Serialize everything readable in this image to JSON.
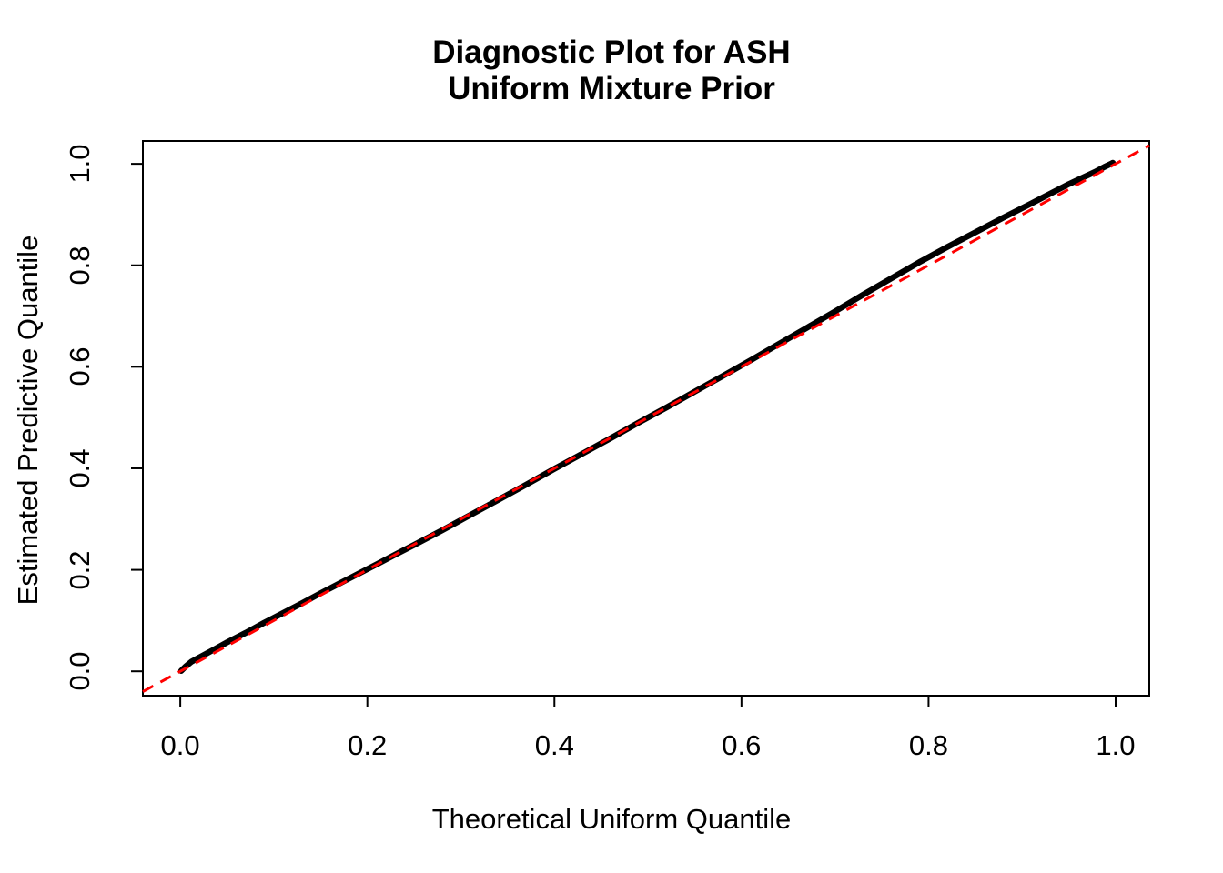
{
  "figure": {
    "title_line1": "Diagnostic Plot for ASH",
    "title_line2": "Uniform Mixture Prior",
    "x_axis_label": "Theoretical Uniform Quantile",
    "y_axis_label": "Estimated Predictive Quantile"
  },
  "colors": {
    "background": "#FFFFFF",
    "axis": "#000000",
    "quantile_curve": "#000000",
    "reference_line": "#FF0000"
  },
  "chart_data": {
    "type": "line",
    "title": "Diagnostic Plot for ASH\nUniform Mixture Prior",
    "xlabel": "Theoretical Uniform Quantile",
    "ylabel": "Estimated Predictive Quantile",
    "xlim": [
      -0.04,
      1.036
    ],
    "ylim": [
      -0.048,
      1.045
    ],
    "x_ticks": [
      0,
      0.2,
      0.4,
      0.6,
      0.8,
      1.0
    ],
    "x_tick_labels": [
      "0.0",
      "0.2",
      "0.4",
      "0.6",
      "0.8",
      "1.0"
    ],
    "y_ticks": [
      0,
      0.2,
      0.4,
      0.6,
      0.8,
      1.0
    ],
    "y_tick_labels": [
      "0.0",
      "0.2",
      "0.4",
      "0.6",
      "0.8",
      "1.0"
    ],
    "grid": false,
    "legend": null,
    "series": [
      {
        "name": "estimated-predictive-quantiles",
        "kind": "curve",
        "color": "#000000",
        "line_style": "solid",
        "line_width": 6.5,
        "points": [
          [
            0.001,
            0.001
          ],
          [
            0.006,
            0.01
          ],
          [
            0.012,
            0.019
          ],
          [
            0.02,
            0.027
          ],
          [
            0.035,
            0.042
          ],
          [
            0.05,
            0.057
          ],
          [
            0.07,
            0.076
          ],
          [
            0.09,
            0.096
          ],
          [
            0.11,
            0.115
          ],
          [
            0.13,
            0.134
          ],
          [
            0.15,
            0.154
          ],
          [
            0.17,
            0.173
          ],
          [
            0.19,
            0.192
          ],
          [
            0.21,
            0.211
          ],
          [
            0.23,
            0.23
          ],
          [
            0.25,
            0.249
          ],
          [
            0.28,
            0.278
          ],
          [
            0.31,
            0.308
          ],
          [
            0.34,
            0.338
          ],
          [
            0.37,
            0.368
          ],
          [
            0.4,
            0.399
          ],
          [
            0.43,
            0.429
          ],
          [
            0.46,
            0.459
          ],
          [
            0.49,
            0.49
          ],
          [
            0.52,
            0.52
          ],
          [
            0.55,
            0.551
          ],
          [
            0.58,
            0.582
          ],
          [
            0.61,
            0.613
          ],
          [
            0.64,
            0.645
          ],
          [
            0.67,
            0.677
          ],
          [
            0.7,
            0.709
          ],
          [
            0.73,
            0.742
          ],
          [
            0.76,
            0.774
          ],
          [
            0.79,
            0.806
          ],
          [
            0.82,
            0.836
          ],
          [
            0.85,
            0.865
          ],
          [
            0.88,
            0.894
          ],
          [
            0.91,
            0.922
          ],
          [
            0.93,
            0.941
          ],
          [
            0.95,
            0.96
          ],
          [
            0.965,
            0.973
          ],
          [
            0.978,
            0.984
          ],
          [
            0.988,
            0.994
          ],
          [
            0.995,
            1.0
          ],
          [
            0.997,
            1.002
          ]
        ]
      },
      {
        "name": "reference-line-y-equals-x",
        "kind": "abline",
        "color": "#FF0000",
        "line_style": "dashed",
        "line_width": 3,
        "intercept": 0,
        "slope": 1
      }
    ]
  }
}
